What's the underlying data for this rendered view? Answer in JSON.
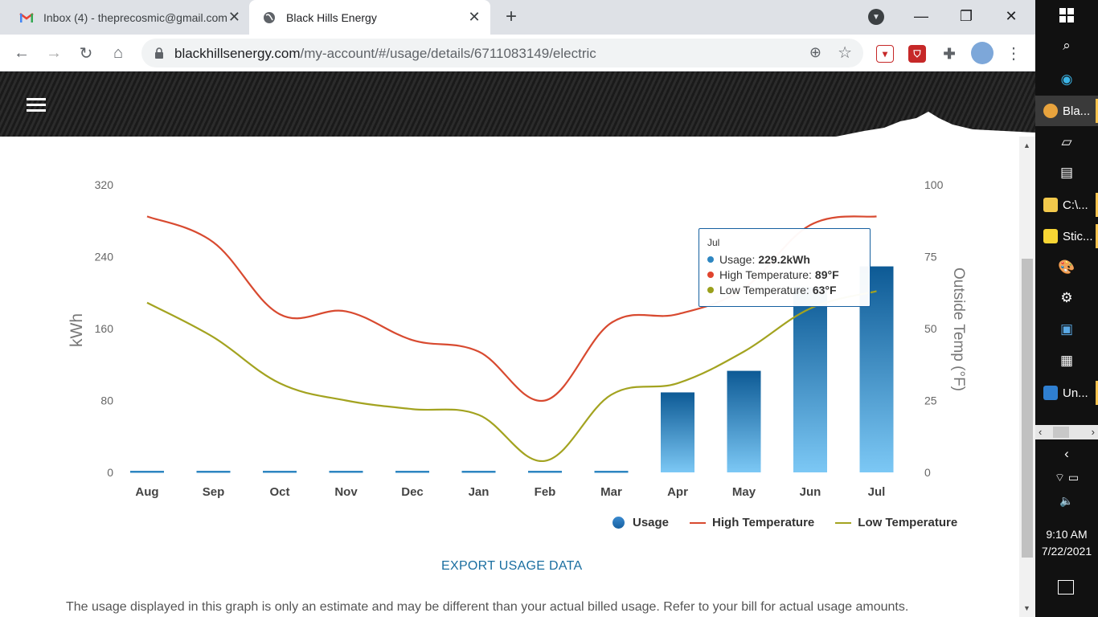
{
  "browser": {
    "tabs": [
      {
        "title": "Inbox (4) - theprecosmic@gmail.com",
        "icon": "gmail-icon",
        "active": false
      },
      {
        "title": "Black Hills Energy",
        "icon": "globe-icon",
        "active": true
      }
    ],
    "url_domain": "blackhillsenergy.com",
    "url_path": "/my-account/#/usage/details/6711083149/electric"
  },
  "chart_data": {
    "type": "bar+line",
    "categories": [
      "Aug",
      "Sep",
      "Oct",
      "Nov",
      "Dec",
      "Jan",
      "Feb",
      "Mar",
      "Apr",
      "May",
      "Jun",
      "Jul"
    ],
    "series": [
      {
        "name": "Usage",
        "axis": "left",
        "type": "bar",
        "unit": "kWh",
        "values": [
          0,
          0,
          0,
          0,
          0,
          0,
          0,
          0,
          89,
          113,
          206,
          229.2
        ]
      },
      {
        "name": "High Temperature",
        "axis": "right",
        "type": "line",
        "unit": "°F",
        "color": "#d84a30",
        "values": [
          89,
          80,
          55,
          56,
          46,
          42,
          25,
          52,
          55,
          64,
          86,
          89
        ]
      },
      {
        "name": "Low Temperature",
        "axis": "right",
        "type": "line",
        "unit": "°F",
        "color": "#a3a320",
        "values": [
          59,
          47,
          31,
          25,
          22,
          20,
          4,
          27,
          31,
          42,
          57,
          63
        ]
      }
    ],
    "ylabel_left": "kWh",
    "ylabel_right": "Outside Temp (°F)",
    "ylim_left": [
      0,
      320
    ],
    "yticks_left": [
      0,
      80,
      160,
      240,
      320
    ],
    "ylim_right": [
      0,
      100
    ],
    "yticks_right": [
      0,
      25,
      50,
      75,
      100
    ],
    "legend_position": "bottom-right",
    "tooltip": {
      "month": "Jul",
      "usage_label": "Usage: ",
      "usage_value": "229.2kWh",
      "high_label": "High Temperature: ",
      "high_value": "89°F",
      "low_label": "Low Temperature: ",
      "low_value": "63°F"
    }
  },
  "legend": {
    "usage": "Usage",
    "high": "High Temperature",
    "low": "Low Temperature"
  },
  "export_label": "EXPORT USAGE DATA",
  "disclaimer": "The usage displayed in this graph is only an estimate and may be different than your actual billed usage. Refer to your bill for actual usage amounts.",
  "taskbar": {
    "apps": [
      {
        "label": "Bla...",
        "color": "#e8a33d"
      },
      {
        "label": "C:\\...",
        "color": "#f2c94c"
      },
      {
        "label": "Stic...",
        "color": "#f7d534"
      },
      {
        "label": "Un...",
        "color": "#2f7fd1"
      }
    ],
    "time": "9:10 AM",
    "date": "7/22/2021"
  }
}
